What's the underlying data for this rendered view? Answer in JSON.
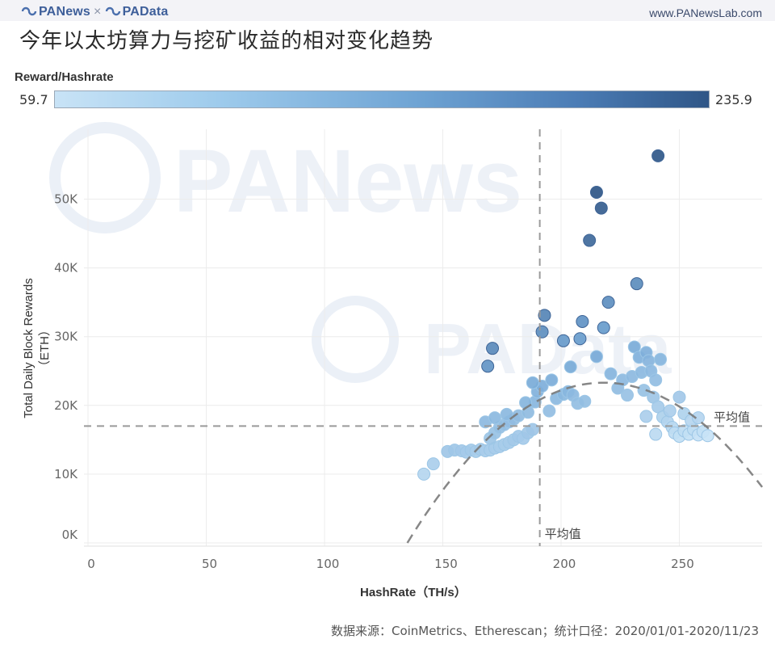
{
  "header": {
    "brand_left": "PANews",
    "brand_sep": "×",
    "brand_right": "PAData",
    "site": "www.PANewsLab.com"
  },
  "title": "今年以太坊算力与挖矿收益的相对变化趋势",
  "legend": {
    "label": "Reward/Hashrate",
    "min": "59.7",
    "max": "235.9",
    "color_low": "#c8e3f6",
    "color_high": "#2f5687"
  },
  "axes": {
    "ylabel": "Total Daily Block Rewards（ETH）",
    "xlabel": "HashRate（TH/s）",
    "yticks": [
      "0K",
      "10K",
      "20K",
      "30K",
      "40K",
      "50K"
    ],
    "xticks": [
      "0",
      "50",
      "100",
      "150",
      "200",
      "250"
    ]
  },
  "reference": {
    "h_mean_label": "平均值",
    "v_mean_label": "平均值"
  },
  "watermarks": [
    "PANews",
    "PAData"
  ],
  "footer": {
    "source": "数据来源：CoinMetrics、Etherescan；统计口径：2020/01/01-2020/11/23"
  },
  "chart_data": {
    "type": "scatter",
    "title": "今年以太坊算力与挖矿收益的相对变化趋势",
    "xlabel": "HashRate（TH/s）",
    "ylabel": "Total Daily Block Rewards（ETH）",
    "xlim": [
      0,
      285
    ],
    "ylim": [
      0,
      57000
    ],
    "x_ticks": [
      0,
      50,
      100,
      150,
      200,
      250
    ],
    "y_ticks": [
      0,
      10000,
      20000,
      30000,
      40000,
      50000
    ],
    "grid": true,
    "color_encoding": {
      "field": "Reward/Hashrate",
      "min": 59.7,
      "max": 235.9
    },
    "reference_lines": {
      "mean_hashrate": 191,
      "mean_rewards": 17000
    },
    "trend": {
      "type": "quadratic",
      "peak_x": 218,
      "peak_y": 23300,
      "x_range": [
        135,
        285
      ]
    },
    "points": [
      [
        142,
        10000
      ],
      [
        146,
        11500
      ],
      [
        152,
        13300
      ],
      [
        155,
        13500
      ],
      [
        158,
        13400
      ],
      [
        160,
        13200
      ],
      [
        162,
        13500
      ],
      [
        164,
        13300
      ],
      [
        166,
        13600
      ],
      [
        168,
        13400
      ],
      [
        170,
        13500
      ],
      [
        172,
        13800
      ],
      [
        174,
        14000
      ],
      [
        176,
        14300
      ],
      [
        178,
        14600
      ],
      [
        180,
        15000
      ],
      [
        182,
        15500
      ],
      [
        184,
        15200
      ],
      [
        186,
        16000
      ],
      [
        188,
        16500
      ],
      [
        170,
        15200
      ],
      [
        172,
        16000
      ],
      [
        174,
        16800
      ],
      [
        176,
        17200
      ],
      [
        178,
        17600
      ],
      [
        180,
        18000
      ],
      [
        168,
        17600
      ],
      [
        172,
        18200
      ],
      [
        177,
        18700
      ],
      [
        182,
        18500
      ],
      [
        186,
        19000
      ],
      [
        189,
        20500
      ],
      [
        190,
        22000
      ],
      [
        192,
        22800
      ],
      [
        188,
        23300
      ],
      [
        196,
        23700
      ],
      [
        198,
        21000
      ],
      [
        201,
        21600
      ],
      [
        203,
        22000
      ],
      [
        205,
        21500
      ],
      [
        207,
        20300
      ],
      [
        210,
        20600
      ],
      [
        195,
        19200
      ],
      [
        185,
        20400
      ],
      [
        169,
        25700
      ],
      [
        171,
        28300
      ],
      [
        192,
        30700
      ],
      [
        193,
        33100
      ],
      [
        201,
        29400
      ],
      [
        204,
        25600
      ],
      [
        208,
        29700
      ],
      [
        209,
        32200
      ],
      [
        215,
        27100
      ],
      [
        218,
        31300
      ],
      [
        220,
        35000
      ],
      [
        212,
        44000
      ],
      [
        215,
        51000
      ],
      [
        217,
        48700
      ],
      [
        232,
        37700
      ],
      [
        241,
        56300
      ],
      [
        221,
        24600
      ],
      [
        224,
        22500
      ],
      [
        226,
        23700
      ],
      [
        228,
        21500
      ],
      [
        230,
        24200
      ],
      [
        231,
        28500
      ],
      [
        233,
        27000
      ],
      [
        234,
        24800
      ],
      [
        235,
        22200
      ],
      [
        236,
        27700
      ],
      [
        237,
        26500
      ],
      [
        238,
        25000
      ],
      [
        240,
        23700
      ],
      [
        242,
        26700
      ],
      [
        239,
        21200
      ],
      [
        241,
        19800
      ],
      [
        243,
        18300
      ],
      [
        245,
        17600
      ],
      [
        247,
        16800
      ],
      [
        248,
        16000
      ],
      [
        250,
        15500
      ],
      [
        252,
        16300
      ],
      [
        254,
        15800
      ],
      [
        256,
        16500
      ],
      [
        258,
        15700
      ],
      [
        260,
        16200
      ],
      [
        262,
        15600
      ],
      [
        246,
        19200
      ],
      [
        250,
        21200
      ],
      [
        236,
        18400
      ],
      [
        240,
        15800
      ],
      [
        252,
        18800
      ],
      [
        255,
        17800
      ],
      [
        258,
        18200
      ]
    ]
  }
}
